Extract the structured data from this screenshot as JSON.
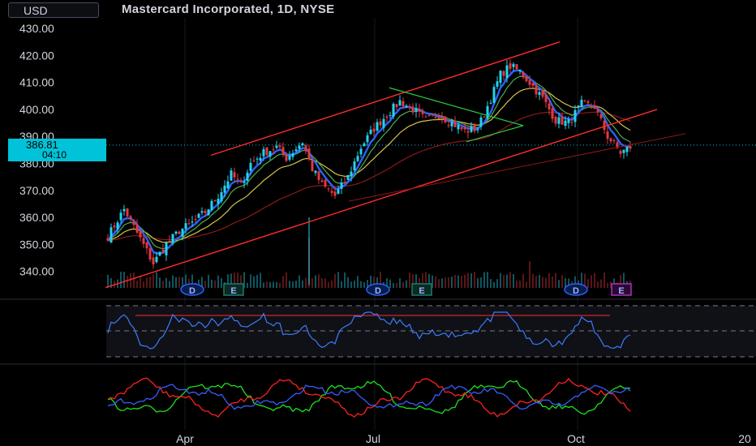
{
  "header": {
    "currency_label": "USD",
    "title": "Mastercard Incorporated, 1D, NYSE"
  },
  "price_tag": {
    "price": "386.81",
    "countdown": "04:10"
  },
  "colors": {
    "up": "#22d3ee",
    "down": "#e5373f",
    "channel": "#ff2b2b",
    "triangle": "#2ecc40",
    "ema_fast": "#2962ff",
    "ema_mid": "#4caf50",
    "sma": "#d4c34a",
    "sma_long": "#8b1a1a",
    "rsi": "#3b7bff",
    "di_plus": "#1ee01e",
    "di_minus": "#ff2020",
    "adx": "#3b5bff",
    "earnings_marker": "#b030c0"
  },
  "chart_data": {
    "type": "candlestick",
    "title": "Mastercard Incorporated, 1D, NYSE",
    "y_axis": {
      "ylim": [
        334,
        434
      ],
      "ticks": [
        "430.00",
        "420.00",
        "410.00",
        "400.00",
        "390.00",
        "380.00",
        "370.00",
        "360.00",
        "350.00",
        "340.00"
      ]
    },
    "x_axis": {
      "tick_labels": [
        "Apr",
        "Jul",
        "Oct",
        "20"
      ]
    },
    "close_anchors": [
      [
        0,
        353
      ],
      [
        5,
        363
      ],
      [
        10,
        352
      ],
      [
        14,
        343
      ],
      [
        18,
        350
      ],
      [
        22,
        355
      ],
      [
        26,
        358
      ],
      [
        30,
        362
      ],
      [
        34,
        368
      ],
      [
        38,
        376
      ],
      [
        41,
        372
      ],
      [
        44,
        380
      ],
      [
        48,
        384
      ],
      [
        52,
        386
      ],
      [
        55,
        382
      ],
      [
        60,
        388
      ],
      [
        63,
        378
      ],
      [
        66,
        372
      ],
      [
        70,
        368
      ],
      [
        74,
        375
      ],
      [
        78,
        386
      ],
      [
        82,
        393
      ],
      [
        86,
        398
      ],
      [
        90,
        403
      ],
      [
        94,
        400
      ],
      [
        98,
        396
      ],
      [
        102,
        398
      ],
      [
        106,
        395
      ],
      [
        110,
        392
      ],
      [
        114,
        393
      ],
      [
        118,
        404
      ],
      [
        121,
        413
      ],
      [
        124,
        416
      ],
      [
        127,
        414
      ],
      [
        130,
        410
      ],
      [
        134,
        404
      ],
      [
        138,
        396
      ],
      [
        142,
        395
      ],
      [
        146,
        402
      ],
      [
        150,
        401
      ],
      [
        154,
        390
      ],
      [
        158,
        384
      ],
      [
        161,
        386
      ]
    ],
    "current_price": 386.81,
    "earnings_markers": [
      "D",
      "E",
      "D",
      "E",
      "D",
      "E"
    ],
    "rsi_pane": {
      "levels": [
        70,
        50,
        30
      ]
    },
    "dmi_pane": {
      "series": [
        "DI+",
        "DI-",
        "ADX"
      ]
    }
  }
}
